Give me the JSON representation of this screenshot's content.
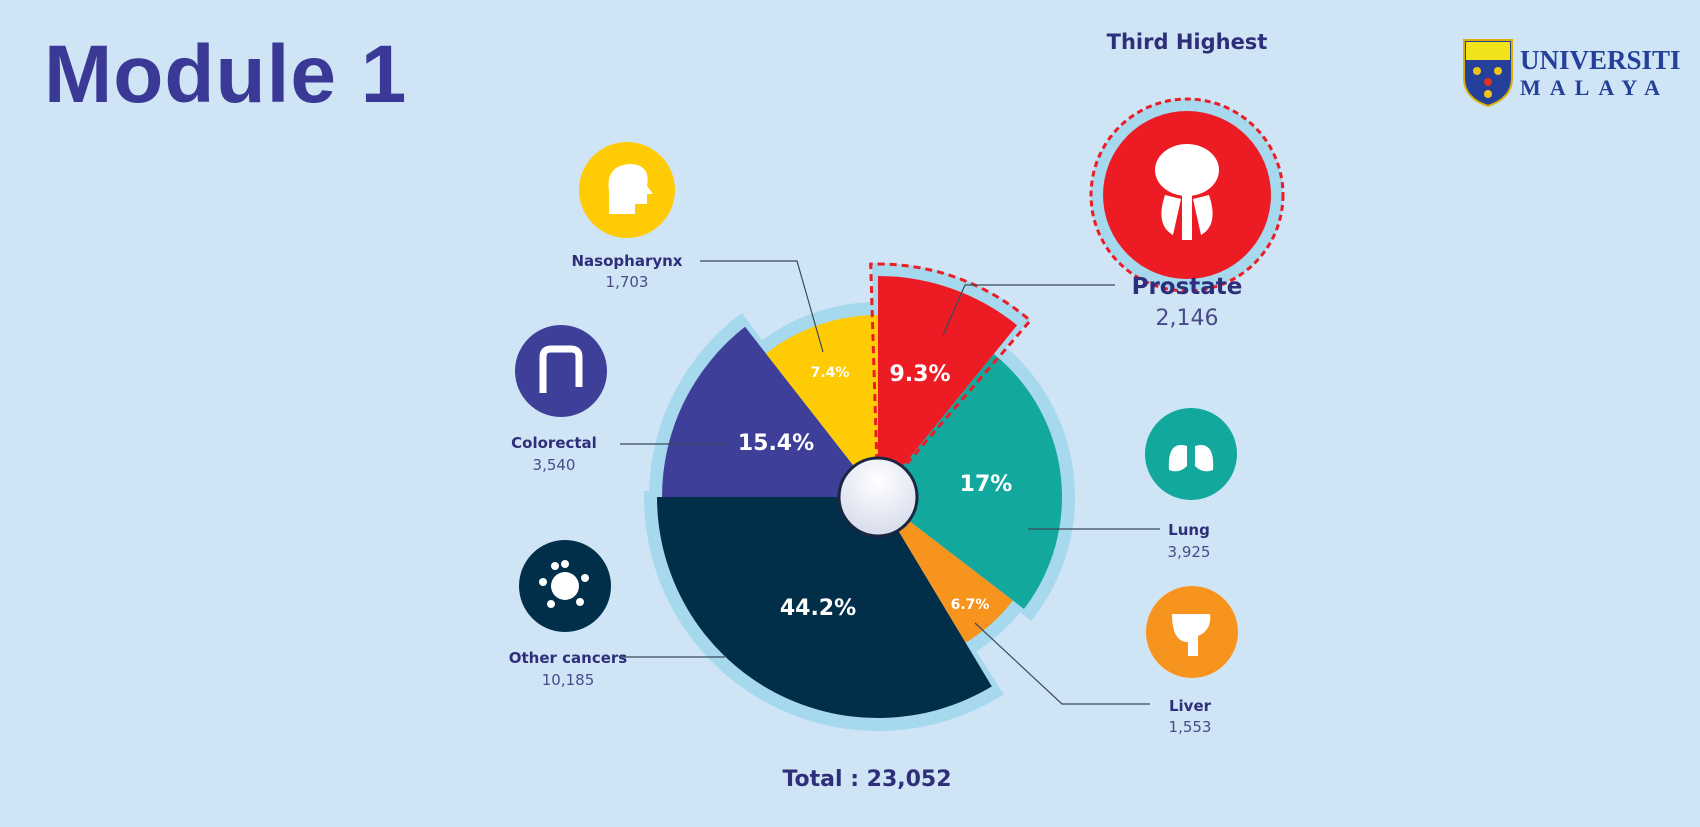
{
  "title": "Module 1",
  "highlight_label": "Third Highest",
  "logo": {
    "line1": "UNIVERSITI",
    "line2": "MALAYA"
  },
  "colors": {
    "background": "#cfe5f5",
    "halo": "#a6d8ee",
    "title": "#3a3a96"
  },
  "chart_data": {
    "type": "pie",
    "total_label": "Total : 23,052",
    "slices": [
      {
        "name": "Prostate",
        "count": "2,146",
        "percent_label": "9.3%",
        "value": 9.3,
        "color": "#ed1c24",
        "icon": "prostate-icon",
        "highlighted": true
      },
      {
        "name": "Lung",
        "count": "3,925",
        "percent_label": "17%",
        "value": 17,
        "color": "#13a89e",
        "icon": "lungs-icon"
      },
      {
        "name": "Liver",
        "count": "1,553",
        "percent_label": "6.7%",
        "value": 6.7,
        "color": "#f7941d",
        "icon": "liver-icon"
      },
      {
        "name": "Other cancers",
        "count": "10,185",
        "percent_label": "44.2%",
        "value": 44.2,
        "color": "#012f4a",
        "icon": "virus-icon"
      },
      {
        "name": "Colorectal",
        "count": "3,540",
        "percent_label": "15.4%",
        "value": 15.4,
        "color": "#3d3f98",
        "icon": "intestine-icon"
      },
      {
        "name": "Nasopharynx",
        "count": "1,703",
        "percent_label": "7.4%",
        "value": 7.4,
        "color": "#ffcb05",
        "icon": "head-profile-icon"
      }
    ]
  }
}
